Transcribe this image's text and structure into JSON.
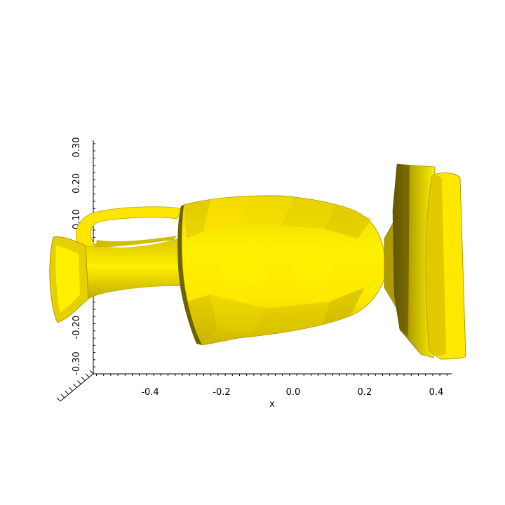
{
  "chart_data": {
    "type": "surface-3d",
    "xlabel": "x",
    "x_ticks": [
      "-0.4",
      "-0.2",
      "0.0",
      "0.2",
      "0.4"
    ],
    "x_tick_values": [
      -0.4,
      -0.2,
      0.0,
      0.2,
      0.4
    ],
    "xlim": [
      -0.55,
      0.45
    ],
    "z_ticks_visible": [
      "0.30",
      "0.20",
      "0.10",
      "-0.20",
      "-0.30"
    ],
    "z_tick_values": [
      0.3,
      0.2,
      0.1,
      -0.2,
      -0.3
    ],
    "zlim": [
      -0.33,
      0.33
    ],
    "object": "amphora",
    "colors": {
      "surface": "#ffee00",
      "surface_mid": "#e6d200",
      "surface_dark": "#7a6a00",
      "axes": "#000000",
      "background": "#ffffff"
    }
  }
}
